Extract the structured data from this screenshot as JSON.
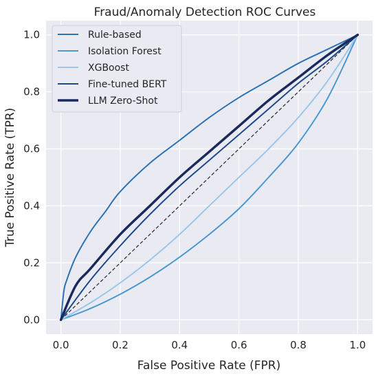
{
  "chart_data": {
    "type": "line",
    "title": "Fraud/Anomaly Detection ROC Curves",
    "xlabel": "False Positive Rate (FPR)",
    "ylabel": "True Positive Rate (TPR)",
    "xlim": [
      -0.05,
      1.05
    ],
    "ylim": [
      -0.05,
      1.05
    ],
    "xticks": [
      "0.0",
      "0.2",
      "0.4",
      "0.6",
      "0.8",
      "1.0"
    ],
    "yticks": [
      "0.0",
      "0.2",
      "0.4",
      "0.6",
      "0.8",
      "1.0"
    ],
    "grid": true,
    "legend_position": "top-left",
    "background": "#eaeaf2",
    "series": [
      {
        "name": "Rule-based",
        "color": "#2b73b3",
        "width": 2,
        "x": [
          0,
          0.01,
          0.02,
          0.05,
          0.1,
          0.15,
          0.2,
          0.3,
          0.4,
          0.5,
          0.6,
          0.7,
          0.8,
          0.9,
          1.0
        ],
        "y": [
          0,
          0.1,
          0.14,
          0.22,
          0.31,
          0.38,
          0.45,
          0.55,
          0.63,
          0.71,
          0.78,
          0.84,
          0.9,
          0.95,
          1.0
        ]
      },
      {
        "name": "Isolation Forest",
        "color": "#4a98d0",
        "width": 2,
        "x": [
          0,
          0.1,
          0.2,
          0.3,
          0.4,
          0.5,
          0.6,
          0.7,
          0.8,
          0.9,
          1.0
        ],
        "y": [
          0,
          0.04,
          0.09,
          0.15,
          0.22,
          0.3,
          0.39,
          0.5,
          0.62,
          0.78,
          1.0
        ]
      },
      {
        "name": "XGBoost",
        "color": "#9ac8ea",
        "width": 2,
        "x": [
          0,
          0.1,
          0.2,
          0.3,
          0.4,
          0.5,
          0.6,
          0.7,
          0.8,
          0.9,
          1.0
        ],
        "y": [
          0,
          0.06,
          0.13,
          0.21,
          0.3,
          0.4,
          0.5,
          0.6,
          0.71,
          0.84,
          1.0
        ]
      },
      {
        "name": "Fine-tuned BERT",
        "color": "#1d4b8c",
        "width": 2,
        "x": [
          0,
          0.1,
          0.2,
          0.3,
          0.4,
          0.5,
          0.6,
          0.7,
          0.8,
          0.9,
          1.0
        ],
        "y": [
          0,
          0.14,
          0.26,
          0.37,
          0.47,
          0.56,
          0.65,
          0.74,
          0.83,
          0.91,
          1.0
        ]
      },
      {
        "name": "LLM Zero-Shot",
        "color": "#1b2a5c",
        "width": 3.5,
        "x": [
          0,
          0.05,
          0.1,
          0.2,
          0.3,
          0.4,
          0.5,
          0.6,
          0.7,
          0.8,
          0.9,
          1.0
        ],
        "y": [
          0,
          0.12,
          0.18,
          0.3,
          0.4,
          0.5,
          0.59,
          0.68,
          0.77,
          0.85,
          0.93,
          1.0
        ]
      }
    ],
    "reference_line": {
      "color": "#333333",
      "dash": "5,3",
      "x": [
        0,
        1
      ],
      "y": [
        0,
        1
      ]
    }
  }
}
